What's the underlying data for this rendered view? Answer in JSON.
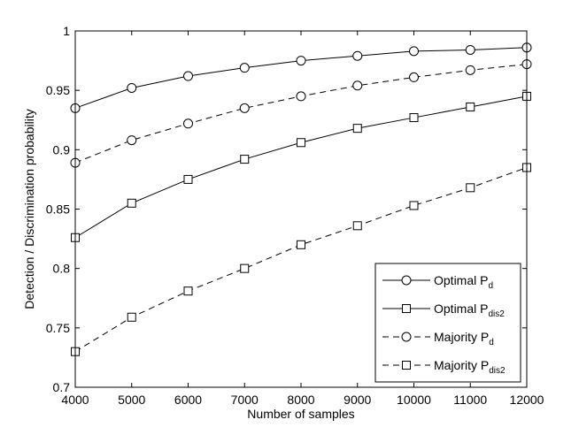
{
  "chart_data": {
    "type": "line",
    "title": "",
    "xlabel": "Number of samples",
    "ylabel": "Detection / Discrimination probability",
    "x": [
      4000,
      5000,
      6000,
      7000,
      8000,
      9000,
      10000,
      11000,
      12000
    ],
    "xlim": [
      4000,
      12000
    ],
    "ylim": [
      0.7,
      1.0
    ],
    "x_ticks": [
      4000,
      5000,
      6000,
      7000,
      8000,
      9000,
      10000,
      11000,
      12000
    ],
    "y_ticks": [
      0.7,
      0.75,
      0.8,
      0.85,
      0.9,
      0.95,
      1.0
    ],
    "x_tick_labels": [
      "4000",
      "5000",
      "6000",
      "7000",
      "8000",
      "9000",
      "10000",
      "11000",
      "12000"
    ],
    "y_tick_labels": [
      "0.7",
      "0.75",
      "0.8",
      "0.85",
      "0.9",
      "0.95",
      "1"
    ],
    "grid": false,
    "legend_position": "bottom-right",
    "series": [
      {
        "id": "opt-pd",
        "name_main": "Optimal P",
        "name_sub": "d",
        "line_style": "solid",
        "marker": "circle",
        "values": [
          0.935,
          0.952,
          0.962,
          0.969,
          0.975,
          0.979,
          0.983,
          0.984,
          0.986
        ]
      },
      {
        "id": "opt-pdis2",
        "name_main": "Optimal P",
        "name_sub": "dis2",
        "line_style": "solid",
        "marker": "square",
        "values": [
          0.826,
          0.855,
          0.875,
          0.892,
          0.906,
          0.918,
          0.927,
          0.936,
          0.945
        ]
      },
      {
        "id": "maj-pd",
        "name_main": "Majority P",
        "name_sub": "d",
        "line_style": "dashed",
        "marker": "circle",
        "values": [
          0.889,
          0.908,
          0.922,
          0.935,
          0.945,
          0.954,
          0.961,
          0.967,
          0.972
        ]
      },
      {
        "id": "maj-pdis2",
        "name_main": "Majority P",
        "name_sub": "dis2",
        "line_style": "dashed",
        "marker": "square",
        "values": [
          0.73,
          0.759,
          0.781,
          0.8,
          0.82,
          0.836,
          0.853,
          0.868,
          0.885
        ]
      }
    ],
    "colors": {
      "line": "#000000",
      "background": "#ffffff"
    }
  }
}
